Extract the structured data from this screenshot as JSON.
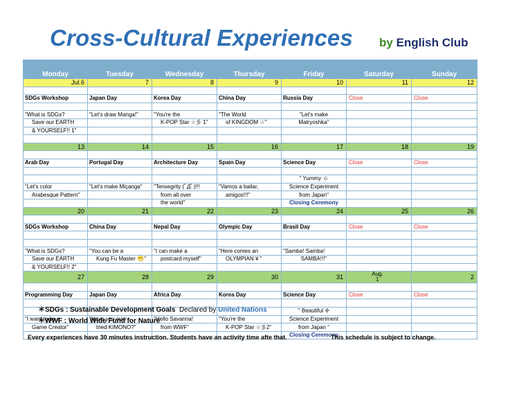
{
  "title": "Cross-Cultural Experiences",
  "by_word": "by",
  "club": "English Club",
  "days": [
    "Monday",
    "Tuesday",
    "Wednesday",
    "Thursday",
    "Friday",
    "Saturday",
    "Sunday"
  ],
  "close_label": "Close",
  "weeks": [
    {
      "dates": [
        "Jul.6",
        "7",
        "8",
        "9",
        "10",
        "11",
        "12"
      ],
      "date_color": "yellow",
      "events": [
        "SDGs Workshop",
        "Japan Day",
        "Korea Day",
        "China Day",
        "Russia Day"
      ],
      "lines": [
        [
          "\"What is SDGs?",
          "\"Let's draw Manga!\"",
          "\"You're the",
          "\"The World",
          "\"Let's make"
        ],
        [
          "Save our EARTH",
          "",
          "K-POP Star ☆彡 1\"",
          "of  KINGDOM ☆\"",
          "Matryoshka\""
        ],
        [
          "& YOURSELF!! 1\"",
          "",
          "",
          "",
          ""
        ],
        [
          "",
          "",
          "",
          "",
          ""
        ]
      ]
    },
    {
      "dates": [
        "13",
        "14",
        "15",
        "16",
        "17",
        "18",
        "19"
      ],
      "date_color": "green",
      "events": [
        "Arab Day",
        "Portugal Day",
        "Architecture Day",
        "Spain Day",
        "Science Day"
      ],
      "lines": [
        [
          "",
          "",
          "",
          "",
          "\" Yummy ☺"
        ],
        [
          "\"Let's color",
          "\"Let's make Miçanga\"",
          "\"Tensegrity (ﾟДﾟ)!!!",
          "\"Vamos a bailar,",
          "Science Experiment"
        ],
        [
          "Arabesque Pattern\"",
          "",
          "from all over",
          "amigos!!!\"",
          "from Japan\""
        ],
        [
          "",
          "",
          "the world\"",
          "",
          "Closing Ceremony"
        ]
      ]
    },
    {
      "dates": [
        "20",
        "21",
        "22",
        "23",
        "24",
        "25",
        "26"
      ],
      "date_color": "green",
      "events": [
        "SDGs Workshop",
        "China Day",
        "Nepal Day",
        "Olympic Day",
        "Brasil Day"
      ],
      "lines": [
        [
          "",
          "",
          "",
          "",
          ""
        ],
        [
          "\"What is SDGs?",
          "\"You can be a",
          "\"I can make a",
          "\"Here comes an",
          "\"Samba! Samba!"
        ],
        [
          "Save our EARTH",
          "Kung Fu Master 😁\"",
          "postcard myself\"",
          "OLYMPIAN ¥ \"",
          "SAMBA!!!\""
        ],
        [
          "& YOURSELF!! 2\"",
          "",
          "",
          "",
          ""
        ]
      ]
    },
    {
      "dates": [
        "27",
        "28",
        "29",
        "30",
        "31",
        "Aug.\n1",
        "2"
      ],
      "date_color": "green",
      "events": [
        "Programming Day",
        "Japan Day",
        "Africa Day",
        "Korea Day",
        "Science Day"
      ],
      "lines": [
        [
          "",
          "",
          "",
          "",
          "\" Beautiful ✢"
        ],
        [
          "\"I want to be a",
          "\"Have you ever",
          "\"Hello Savanna!",
          "\"You're the",
          "Science Experiment"
        ],
        [
          "Game Creator\"",
          "tried  KIMONO?\"",
          "from WWF\"",
          "K-POP Star ☆彡2\"",
          "from Japan  \""
        ],
        [
          "",
          "",
          "",
          "",
          "Closing Ceremony"
        ]
      ]
    }
  ],
  "notes": {
    "sdgs": "＊SDGs : Sustainable Development Goals",
    "declared": "Declared by",
    "un": "United Nations",
    "wwf": "＊WWF :  World Wide Fund for Nature"
  },
  "footer": {
    "left": "Every experiences have 30 minutes instruction. Students have an activity time afte that.",
    "right": "This schedule is subject to change."
  }
}
